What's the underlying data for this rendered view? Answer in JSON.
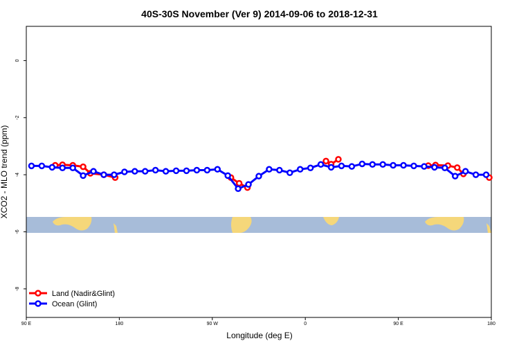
{
  "chart_data": {
    "type": "line",
    "title": "40S-30S November (Ver 9)   2014-09-06 to 2018-12-31",
    "x_label": "Longitude (deg E)",
    "y_label": "XCO2 - MLO trend (ppm)",
    "xlim": [
      90,
      540
    ],
    "ylim": [
      -9,
      1.2
    ],
    "xticks": [
      {
        "value": 90,
        "label": "90 E"
      },
      180,
      {
        "value": 270,
        "label": "90 W"
      },
      {
        "value": 360,
        "label": "0"
      },
      {
        "value": 450,
        "label": "90 E"
      },
      {
        "value": 540,
        "label": "180"
      }
    ],
    "yticks": [
      -8,
      -6,
      -4,
      -2,
      0
    ],
    "legend": "bottom-left",
    "series": [
      {
        "name": "Land (Nadir&Glint)",
        "color": "#ff0000",
        "x": [
          118,
          125,
          135,
          145,
          152,
          165,
          176,
          200,
          288,
          296,
          304,
          340,
          380,
          385,
          392,
          440,
          479,
          486,
          498,
          507,
          513,
          525,
          538
        ],
        "values": [
          -3.67,
          -3.65,
          -3.67,
          -3.72,
          -3.95,
          -4.0,
          -4.1,
          null,
          -4.1,
          -4.3,
          -4.45,
          null,
          -3.52,
          -3.63,
          -3.46,
          null,
          -3.68,
          -3.66,
          -3.68,
          -3.75,
          -3.97,
          null,
          -4.1
        ]
      },
      {
        "name": "Ocean (Glint)",
        "color": "#0000ff",
        "x": [
          95,
          105,
          115,
          125,
          135,
          145,
          155,
          165,
          175,
          185,
          195,
          205,
          215,
          225,
          235,
          245,
          255,
          265,
          275,
          285,
          295,
          305,
          315,
          325,
          335,
          345,
          355,
          365,
          375,
          385,
          395,
          405,
          415,
          425,
          435,
          445,
          455,
          465,
          475,
          485,
          495,
          505,
          515,
          525,
          535
        ],
        "values": [
          -3.69,
          -3.69,
          -3.74,
          -3.76,
          -3.76,
          -4.03,
          -3.88,
          -4.0,
          -4.0,
          -3.9,
          -3.88,
          -3.88,
          -3.84,
          -3.88,
          -3.86,
          -3.86,
          -3.84,
          -3.84,
          -3.81,
          -4.03,
          -4.49,
          -4.34,
          -4.05,
          -3.81,
          -3.84,
          -3.93,
          -3.81,
          -3.76,
          -3.64,
          -3.74,
          -3.69,
          -3.71,
          -3.62,
          -3.64,
          -3.64,
          -3.67,
          -3.67,
          -3.69,
          -3.71,
          -3.74,
          -3.76,
          -4.05,
          -3.88,
          -4.0,
          -4.0
        ]
      }
    ]
  }
}
